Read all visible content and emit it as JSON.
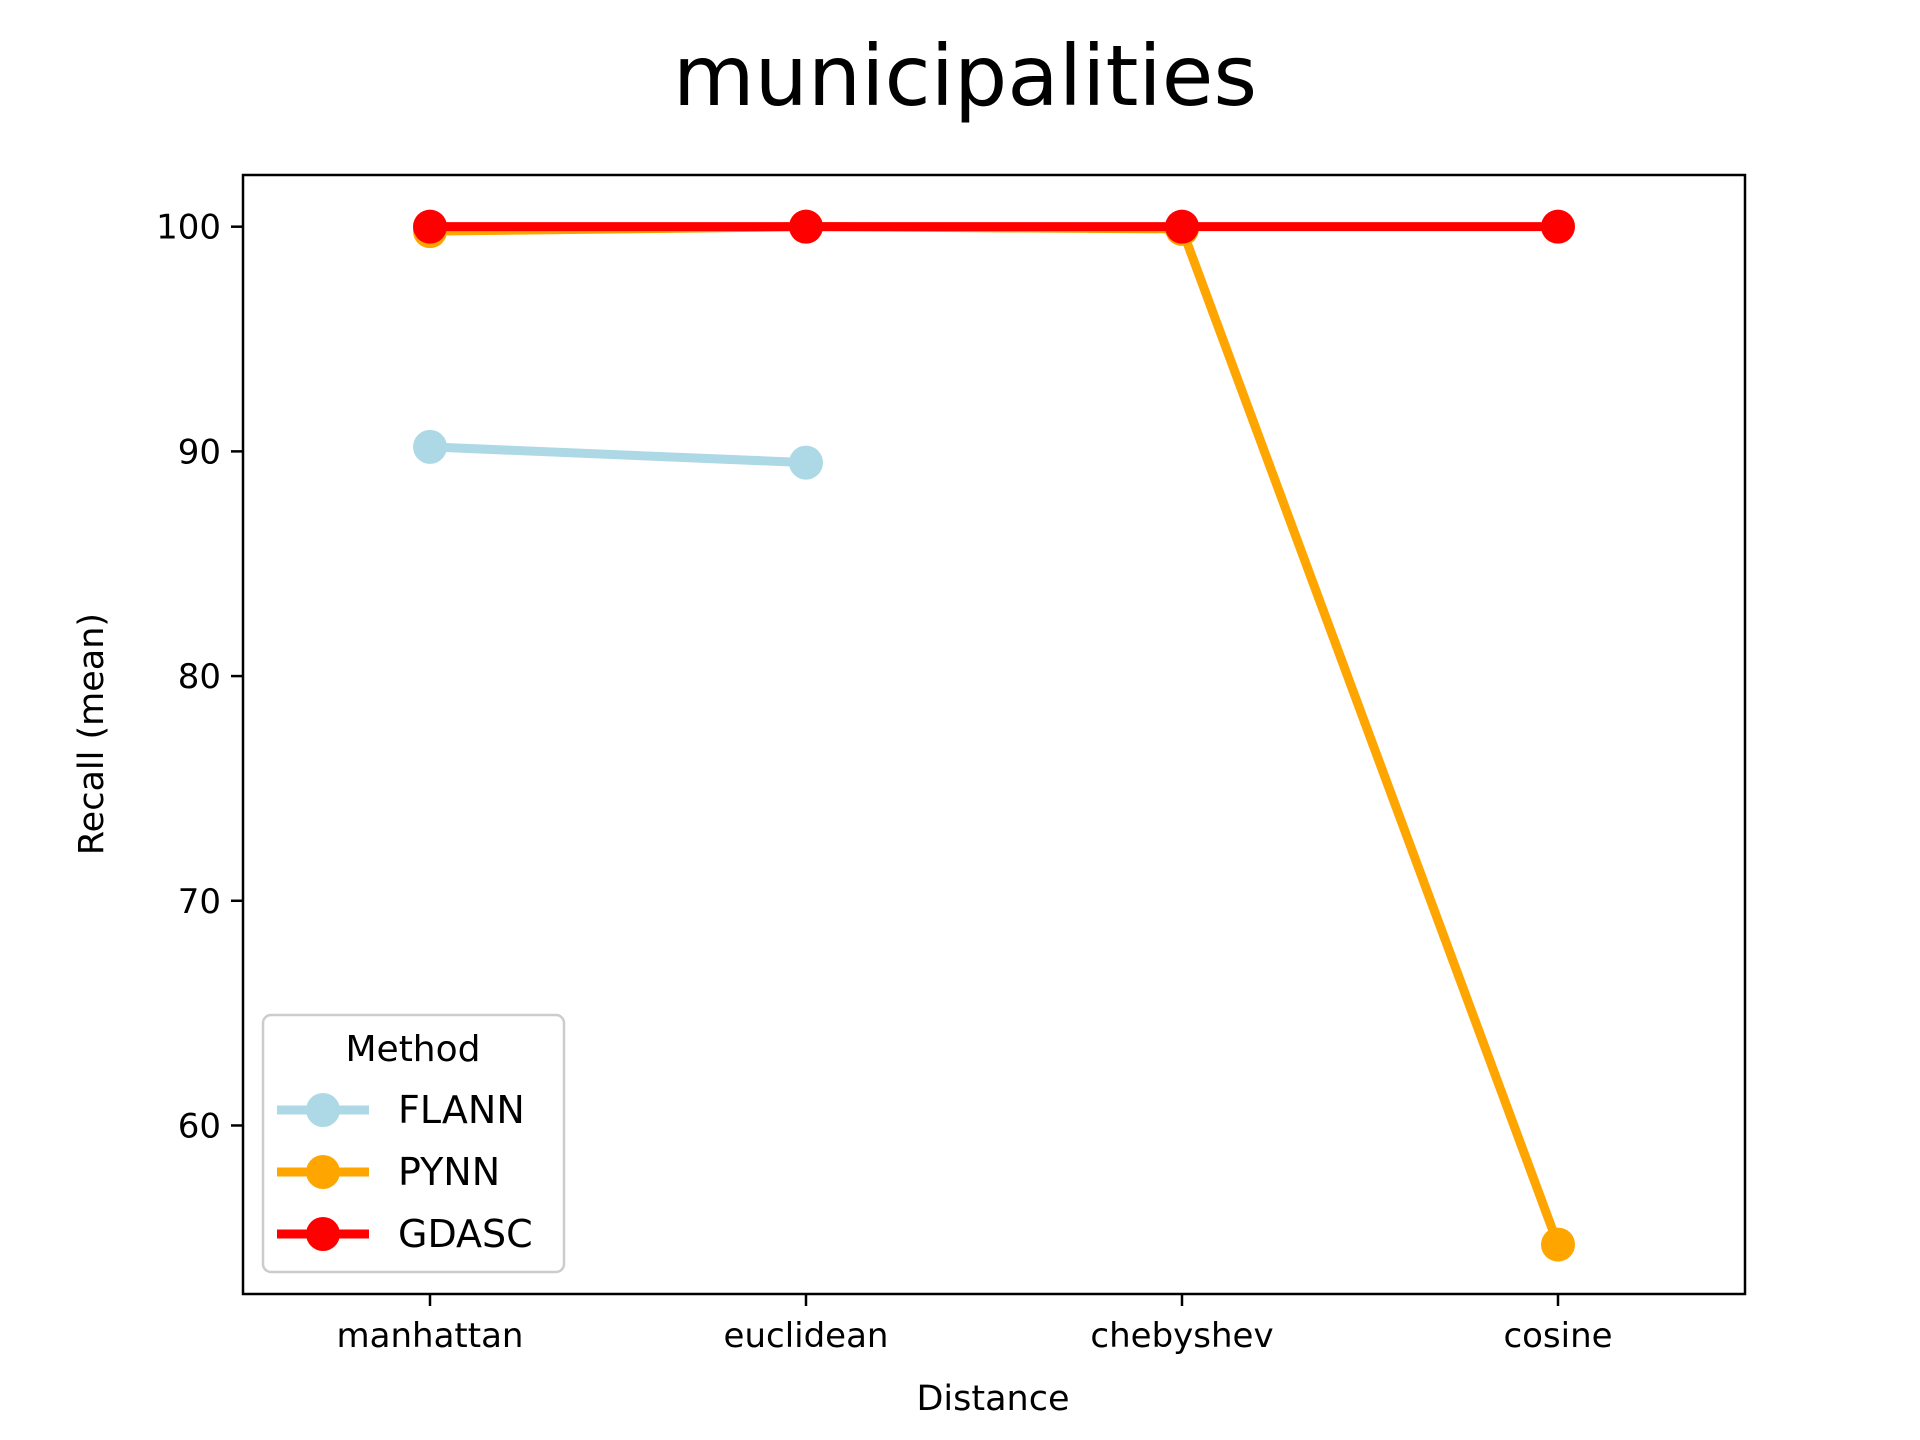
{
  "chart_data": {
    "type": "line",
    "title": "municipalities",
    "xlabel": "Distance",
    "ylabel": "Recall (mean)",
    "categories": [
      "manhattan",
      "euclidean",
      "chebyshev",
      "cosine"
    ],
    "ylim": [
      52.5,
      102.3
    ],
    "yticks": [
      60,
      70,
      80,
      90,
      100
    ],
    "grid": false,
    "legend": {
      "title": "Method",
      "placement": "lower-left"
    },
    "series": [
      {
        "name": "FLANN",
        "color": "#add8e6",
        "values": [
          90.2,
          89.5,
          null,
          null
        ]
      },
      {
        "name": "PYNN",
        "color": "#ffa500",
        "values": [
          99.8,
          100.0,
          99.9,
          54.7
        ]
      },
      {
        "name": "GDASC",
        "color": "#ff0000",
        "values": [
          100.0,
          100.0,
          100.0,
          100.0
        ]
      }
    ]
  }
}
